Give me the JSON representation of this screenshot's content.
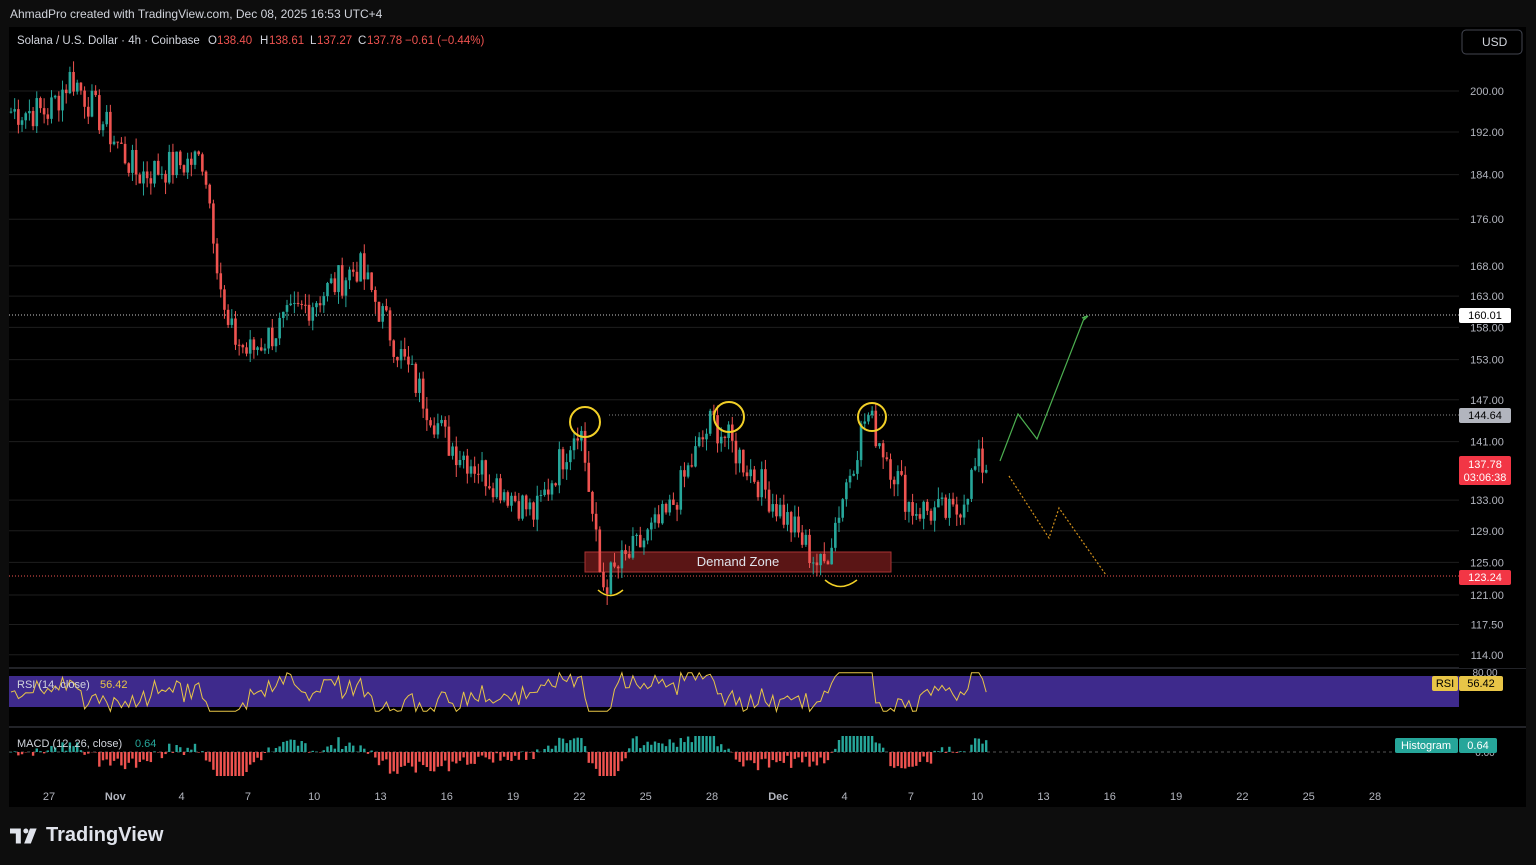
{
  "header": {
    "created_by": "AhmadPro created with TradingView.com, Dec 08, 2025 16:53 UTC+4"
  },
  "legend": {
    "symbol": "Solana / U.S. Dollar · 4h · Coinbase",
    "o_label": "O",
    "o_value": "138.40",
    "h_label": "H",
    "h_value": "138.61",
    "l_label": "L",
    "l_value": "137.27",
    "c_label": "C",
    "c_value": "137.78",
    "change": "−0.61 (−0.44%)"
  },
  "currency_button": "USD",
  "colors": {
    "up": "#26a69a",
    "down": "#ef5350",
    "rsi_line": "#e8c547",
    "rsi_band": "#3e2a8c",
    "zone": "#5a1515",
    "circle": "#f2d027",
    "green_path": "#4caf50",
    "orange_path": "#d1901b"
  },
  "annotations": {
    "demand_zone": "Demand Zone"
  },
  "rsi": {
    "label": "RSI (14, close)",
    "value": "56.42",
    "tag": "RSI",
    "level_80": "80.00"
  },
  "macd": {
    "label": "MACD (12, 26, close)",
    "value": "0.64",
    "tag": "Histogram",
    "zero_label": "0.00"
  },
  "price_labels": {
    "resistance": "160.01",
    "neckline": "144.64",
    "current": "137.78",
    "countdown": "03:06:38",
    "support": "123.24"
  },
  "footer": {
    "brand": "TradingView"
  },
  "chart_data": {
    "type": "candlestick",
    "title": "Solana / U.S. Dollar · 4h · Coinbase",
    "y_axis": {
      "ticks": [
        "200.00",
        "192.00",
        "184.00",
        "176.00",
        "168.00",
        "163.00",
        "158.00",
        "153.00",
        "147.00",
        "141.00",
        "133.00",
        "129.00",
        "125.00",
        "121.00",
        "117.50",
        "114.00"
      ],
      "scale": "log"
    },
    "x_axis": {
      "ticks": [
        "27",
        "Nov",
        "4",
        "7",
        "10",
        "13",
        "16",
        "19",
        "22",
        "25",
        "28",
        "Dec",
        "4",
        "7",
        "10",
        "13",
        "16",
        "19",
        "22",
        "25",
        "28"
      ]
    },
    "key_points": [
      {
        "date": "Oct 27",
        "price": 196
      },
      {
        "date": "Oct 28",
        "price": 203
      },
      {
        "date": "Oct 31",
        "price": 184
      },
      {
        "date": "Nov 3",
        "price": 187
      },
      {
        "date": "Nov 4",
        "price": 158
      },
      {
        "date": "Nov 5",
        "price": 154
      },
      {
        "date": "Nov 10",
        "price": 168
      },
      {
        "date": "Nov 12",
        "price": 153
      },
      {
        "date": "Nov 14",
        "price": 141
      },
      {
        "date": "Nov 18",
        "price": 131
      },
      {
        "date": "Nov 20",
        "price": 144
      },
      {
        "date": "Nov 21",
        "price": 122
      },
      {
        "date": "Nov 24",
        "price": 131
      },
      {
        "date": "Nov 26",
        "price": 144
      },
      {
        "date": "Nov 28",
        "price": 136
      },
      {
        "date": "Dec 1",
        "price": 124
      },
      {
        "date": "Dec 3",
        "price": 145
      },
      {
        "date": "Dec 5",
        "price": 132
      },
      {
        "date": "Dec 7",
        "price": 131
      },
      {
        "date": "Dec 8",
        "price": 137.78
      }
    ],
    "levels": [
      {
        "name": "resistance",
        "value": 160.01
      },
      {
        "name": "neckline",
        "value": 144.64
      },
      {
        "name": "support",
        "value": 123.24
      }
    ],
    "demand_zone": {
      "from": 123.3,
      "to": 125.8
    },
    "rsi": {
      "value": 56.42,
      "upper": 70,
      "lower": 30
    },
    "macd_histogram": {
      "value": 0.64
    }
  }
}
